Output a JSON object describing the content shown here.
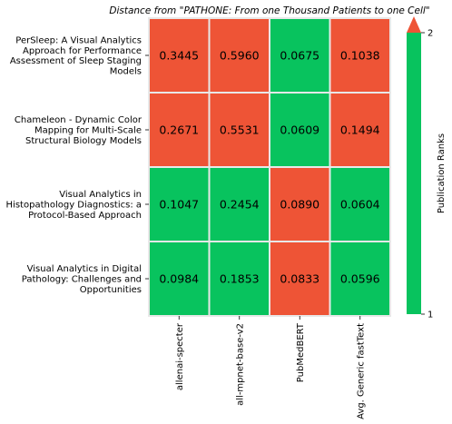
{
  "chart_data": {
    "type": "heatmap",
    "title": "Distance from \"PATHONE: From one Thousand Patients to one Cell\"",
    "rows": [
      [
        "PerSleep: A Visual Analytics",
        "Approach for Performance",
        "Assessment of Sleep Staging",
        "Models"
      ],
      [
        "Chameleon - Dynamic Color",
        "Mapping for Multi-Scale",
        "Structural Biology Models"
      ],
      [
        "Visual Analytics in",
        "Histopathology Diagnostics: a",
        "Protocol-Based Approach"
      ],
      [
        "Visual Analytics in Digital",
        "Pathology: Challenges and",
        "Opportunities"
      ]
    ],
    "columns": [
      "allenai-specter",
      "all-mpnet-base-v2",
      "PubMedBERT",
      "Avg. Generic fastText"
    ],
    "cells": [
      [
        {
          "value": "0.3445",
          "rank": 2
        },
        {
          "value": "0.5960",
          "rank": 2
        },
        {
          "value": "0.0675",
          "rank": 1
        },
        {
          "value": "0.1038",
          "rank": 2
        }
      ],
      [
        {
          "value": "0.2671",
          "rank": 2
        },
        {
          "value": "0.5531",
          "rank": 2
        },
        {
          "value": "0.0609",
          "rank": 1
        },
        {
          "value": "0.1494",
          "rank": 2
        }
      ],
      [
        {
          "value": "0.1047",
          "rank": 1
        },
        {
          "value": "0.2454",
          "rank": 1
        },
        {
          "value": "0.0890",
          "rank": 2
        },
        {
          "value": "0.0604",
          "rank": 1
        }
      ],
      [
        {
          "value": "0.0984",
          "rank": 1
        },
        {
          "value": "0.1853",
          "rank": 1
        },
        {
          "value": "0.0833",
          "rank": 2
        },
        {
          "value": "0.0596",
          "rank": 1
        }
      ]
    ],
    "colorbar": {
      "label": "Publication Ranks",
      "ticks": [
        "2",
        "1"
      ],
      "range": [
        1,
        2
      ],
      "extend": "max"
    },
    "colors": {
      "rank_1": "#08c35e",
      "rank_2": "#ee5436",
      "grid": "#e8e8e8"
    }
  }
}
